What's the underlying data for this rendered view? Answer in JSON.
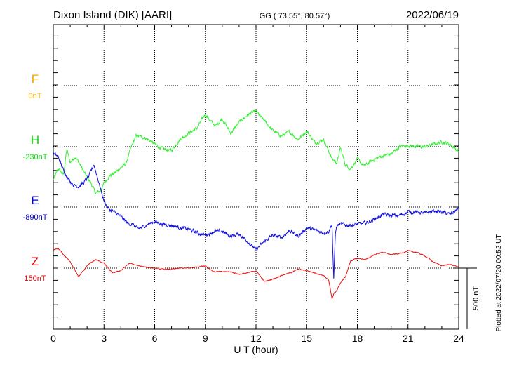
{
  "header": {
    "station": "Dixon Island (DIK)  [AARI]",
    "coords": "GG ( 73.55°,  80.57°)",
    "date": "2022/06/19"
  },
  "side_note": "Plotted at 2022/07/20 00:52 UT",
  "scale_label": "500 nT",
  "chart_data": {
    "type": "line",
    "xlabel": "U T (hour)",
    "x_ticks": [
      0,
      3,
      6,
      9,
      12,
      15,
      18,
      21,
      24
    ],
    "xlim": [
      0,
      24
    ],
    "components": [
      {
        "letter": "F",
        "baseline": "0nT",
        "color": "#f0a800"
      },
      {
        "letter": "H",
        "baseline": "-230nT",
        "color": "#00e000"
      },
      {
        "letter": "E",
        "baseline": "-890nT",
        "color": "#0000d0"
      },
      {
        "letter": "Z",
        "baseline": "150nT",
        "color": "#e00000"
      }
    ],
    "series": [
      {
        "component": "H",
        "color": "#33ee33",
        "x": [
          0,
          0.3,
          0.6,
          0.8,
          1.0,
          1.3,
          1.6,
          1.9,
          2.2,
          2.5,
          2.8,
          3.0,
          3.3,
          3.6,
          4.0,
          4.3,
          4.6,
          4.9,
          5.2,
          5.5,
          5.8,
          6.0,
          6.5,
          7.0,
          7.5,
          8.0,
          8.5,
          9.0,
          9.3,
          9.6,
          10.0,
          10.5,
          11.0,
          11.5,
          12.0,
          12.3,
          12.7,
          13.0,
          13.5,
          14.0,
          14.5,
          15.0,
          15.5,
          16.0,
          16.5,
          16.8,
          17.0,
          17.3,
          17.6,
          18.0,
          18.4,
          18.8,
          19.2,
          19.6,
          20.0,
          20.5,
          21.0,
          21.5,
          22.0,
          22.5,
          23.0,
          23.5,
          24.0
        ],
        "y": [
          -270,
          -180,
          -230,
          -20,
          -130,
          -80,
          -150,
          -230,
          -290,
          -380,
          -360,
          -300,
          -240,
          -220,
          -170,
          -140,
          -10,
          90,
          80,
          70,
          40,
          20,
          -20,
          -30,
          60,
          110,
          150,
          270,
          210,
          170,
          230,
          110,
          200,
          260,
          290,
          240,
          180,
          130,
          90,
          120,
          60,
          130,
          30,
          60,
          -100,
          -130,
          -10,
          -150,
          -180,
          -100,
          -160,
          -120,
          -90,
          -70,
          -60,
          0,
          10,
          0,
          0,
          20,
          40,
          20,
          -40
        ]
      },
      {
        "component": "E",
        "color": "#1010dd",
        "x": [
          0,
          0.3,
          0.6,
          0.9,
          1.2,
          1.5,
          1.8,
          2.1,
          2.4,
          2.7,
          3.0,
          3.3,
          3.6,
          4.0,
          4.4,
          4.8,
          5.0,
          5.2,
          5.6,
          6.0,
          6.5,
          7.0,
          7.5,
          8.0,
          8.5,
          9.0,
          9.5,
          10.0,
          10.5,
          11.0,
          11.5,
          12.0,
          12.5,
          13.0,
          13.5,
          14.0,
          14.5,
          15.0,
          15.5,
          16.0,
          16.3,
          16.5,
          16.6,
          16.7,
          16.8,
          17.0,
          17.5,
          18.0,
          18.5,
          19.0,
          19.5,
          20.0,
          20.5,
          21.0,
          21.5,
          22.0,
          22.5,
          23.0,
          23.5,
          24.0
        ],
        "y": [
          440,
          410,
          300,
          230,
          180,
          170,
          200,
          250,
          350,
          200,
          50,
          -20,
          -40,
          -80,
          -130,
          -150,
          -180,
          -170,
          -140,
          -120,
          -140,
          -150,
          -170,
          -180,
          -210,
          -230,
          -200,
          -200,
          -240,
          -220,
          -280,
          -350,
          -280,
          -230,
          -250,
          -190,
          -240,
          -170,
          -190,
          -210,
          -200,
          -140,
          -600,
          -210,
          -150,
          -140,
          -150,
          -140,
          -130,
          -100,
          -60,
          -70,
          -70,
          -40,
          -40,
          -50,
          -30,
          -40,
          -60,
          -10
        ]
      },
      {
        "component": "Z",
        "color": "#ee1111",
        "x": [
          0,
          0.3,
          0.6,
          1.0,
          1.5,
          2.0,
          2.5,
          3.0,
          3.5,
          4.0,
          4.5,
          5.0,
          5.5,
          6.0,
          6.5,
          7.0,
          7.5,
          8.0,
          8.5,
          9.0,
          9.5,
          10.0,
          10.5,
          11.0,
          11.5,
          12.0,
          12.5,
          13.0,
          13.5,
          14.0,
          14.5,
          15.0,
          15.5,
          16.0,
          16.3,
          16.5,
          16.6,
          16.8,
          17.0,
          17.3,
          17.6,
          18.0,
          18.5,
          19.0,
          19.5,
          20.0,
          20.5,
          21.0,
          21.5,
          22.0,
          22.5,
          23.0,
          23.5,
          24.0
        ],
        "y": [
          150,
          160,
          110,
          50,
          -70,
          20,
          70,
          40,
          -40,
          -20,
          40,
          20,
          10,
          0,
          -10,
          -10,
          0,
          0,
          10,
          20,
          -30,
          -30,
          -30,
          -50,
          -40,
          -20,
          -110,
          -90,
          -60,
          -40,
          -10,
          -20,
          -40,
          -60,
          -100,
          -250,
          -210,
          -180,
          -120,
          -70,
          60,
          80,
          70,
          110,
          130,
          110,
          120,
          140,
          130,
          100,
          50,
          20,
          30,
          10
        ]
      }
    ]
  }
}
